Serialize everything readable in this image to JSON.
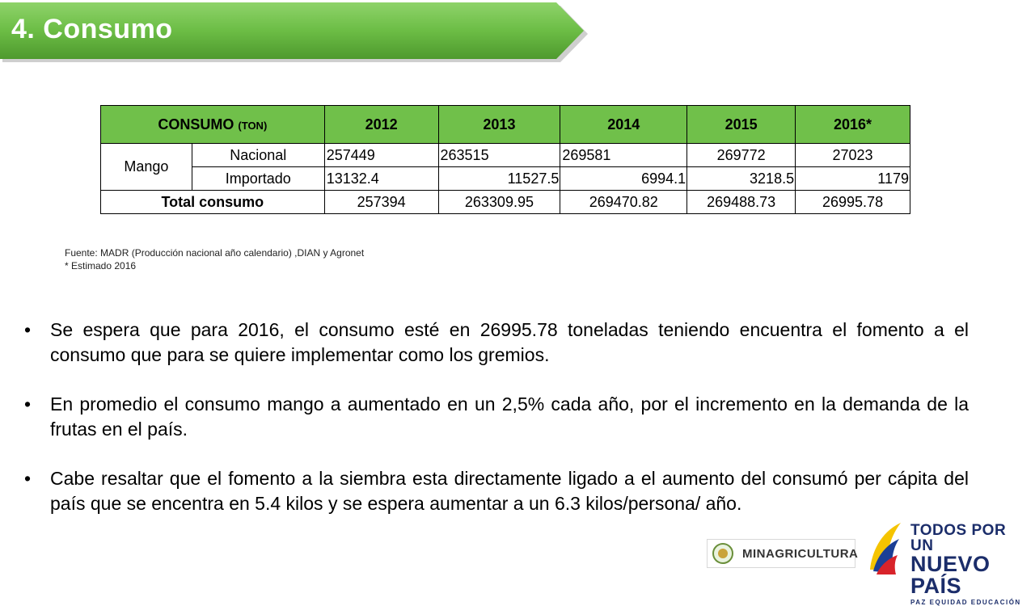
{
  "title": "4. Consumo",
  "table": {
    "header_label": "CONSUMO",
    "header_unit": "(TON)",
    "years": [
      "2012",
      "2013",
      "2014",
      "2015",
      "2016*"
    ],
    "group_label": "Mango",
    "rows": [
      {
        "label": "Nacional",
        "values": [
          "257449",
          "263515",
          "269581",
          "269772",
          "27023"
        ]
      },
      {
        "label": "Importado",
        "values": [
          "13132.4",
          "11527.5",
          "6994.1",
          "3218.5",
          "1179"
        ]
      }
    ],
    "total": {
      "label": "Total consumo",
      "values": [
        "257394",
        "263309.95",
        "269470.82",
        "269488.73",
        "26995.78"
      ]
    }
  },
  "source": {
    "line1": "Fuente: MADR (Producción nacional año calendario) ,DIAN  y Agronet",
    "line2": "* Estimado 2016"
  },
  "bullets": [
    "Se espera que para 2016, el consumo esté  en 26995.78 toneladas teniendo encuentra el fomento a el consumo que para se quiere implementar como  los gremios.",
    "En promedio el consumo mango a aumentado en un  2,5% cada año, por el incremento en la demanda de la frutas en el país.",
    "Cabe resaltar que el fomento a la siembra esta directamente ligado a el aumento del consumó per cápita del país que se encentra en 5.4 kilos y se espera aumentar a un 6.3 kilos/persona/ año."
  ],
  "bullet_symbol": "•",
  "logos": {
    "minagricultura": "MINAGRICULTURA",
    "todos_line1": "TODOS POR UN",
    "todos_line2": "NUEVO PAÍS",
    "todos_line3": "PAZ  EQUIDAD  EDUCACIÓN"
  },
  "colors": {
    "banner_green": "#6cbd45",
    "header_green": "#70c04a",
    "navy": "#1b2d6a"
  }
}
